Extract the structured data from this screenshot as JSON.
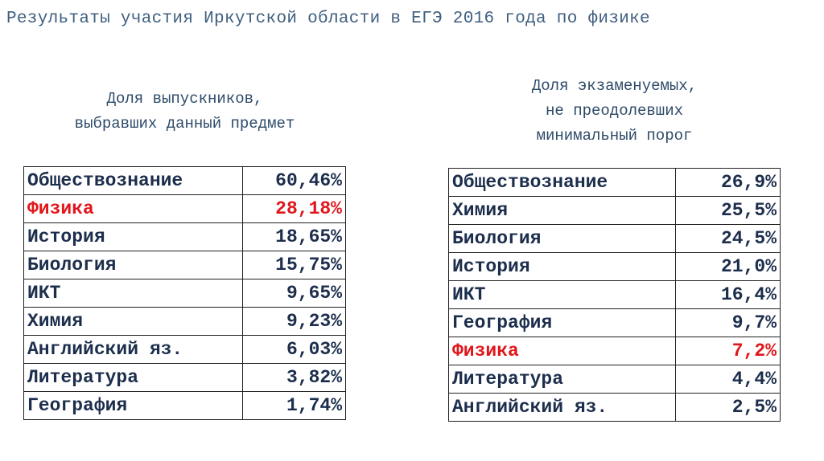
{
  "header": {
    "title": "Результаты участия Иркутской области в ЕГЭ 2016 года по физике"
  },
  "tables": [
    {
      "heading": [
        "Доля выпускников,",
        "выбравших данный предмет"
      ],
      "rows": [
        {
          "subject": "Обществознание",
          "value": "60,46%"
        },
        {
          "subject": "Физика",
          "value": "28,18%",
          "color": "#e0161b"
        },
        {
          "subject": "История",
          "value": "18,65%"
        },
        {
          "subject": "Биология",
          "value": "15,75%"
        },
        {
          "subject": "ИКТ",
          "value": "9,65%"
        },
        {
          "subject": "Химия",
          "value": "9,23%"
        },
        {
          "subject": "Английский яз.",
          "value": "6,03%"
        },
        {
          "subject": "Литература",
          "value": "3,82%"
        },
        {
          "subject": "География",
          "value": "1,74%"
        }
      ]
    },
    {
      "heading": [
        "Доля экзаменуемых,",
        "не преодолевших",
        "минимальный порог"
      ],
      "rows": [
        {
          "subject": "Обществознание",
          "value": "26,9%"
        },
        {
          "subject": "Химия",
          "value": "25,5%"
        },
        {
          "subject": "Биология",
          "value": "24,5%"
        },
        {
          "subject": "История",
          "value": "21,0%"
        },
        {
          "subject": "ИКТ",
          "value": "16,4%"
        },
        {
          "subject": "География",
          "value": "9,7%"
        },
        {
          "subject": "Физика",
          "value": "7,2%",
          "color": "#e0161b"
        },
        {
          "subject": "Литература",
          "value": "4,4%"
        },
        {
          "subject": "Английский яз.",
          "value": "2,5%"
        }
      ]
    }
  ]
}
